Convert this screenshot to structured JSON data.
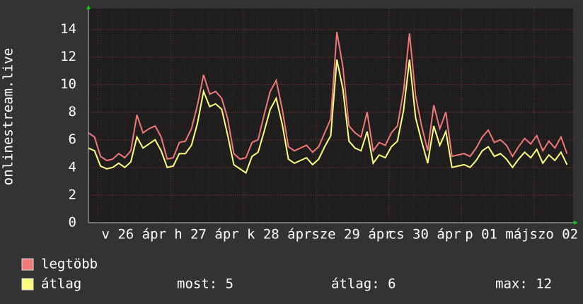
{
  "chart_data": {
    "type": "line",
    "ylabel": "onlinestream.live",
    "x": [
      0,
      2,
      4,
      6,
      8,
      10,
      12,
      14,
      16,
      18,
      20,
      22,
      24,
      26,
      28,
      30,
      32,
      34,
      36,
      38,
      40,
      42,
      44,
      46,
      48,
      50,
      52,
      54,
      56,
      58,
      60,
      62,
      64,
      66,
      68,
      70,
      72,
      74,
      76,
      78,
      80,
      82,
      84,
      86,
      88,
      90,
      92,
      94,
      96,
      98,
      100,
      102,
      104,
      106,
      108,
      110,
      112,
      114,
      116,
      118,
      120,
      122,
      124,
      126,
      128,
      130,
      132,
      134,
      136,
      138,
      140,
      142,
      144,
      146,
      148,
      150,
      152,
      154,
      156,
      158
    ],
    "series": [
      {
        "name": "legtöbb",
        "color": "#f07878",
        "values": [
          6.5,
          6.2,
          4.8,
          4.5,
          4.6,
          5.0,
          4.7,
          5.2,
          7.8,
          6.5,
          6.8,
          7.0,
          6.2,
          4.6,
          4.7,
          5.8,
          5.9,
          6.8,
          8.5,
          10.7,
          9.3,
          9.5,
          9.0,
          7.5,
          5.0,
          4.6,
          4.7,
          5.8,
          6.0,
          7.8,
          9.5,
          10.3,
          8.2,
          5.5,
          5.2,
          5.4,
          5.6,
          5.1,
          5.5,
          6.5,
          7.5,
          13.8,
          11.3,
          7.0,
          6.5,
          6.2,
          8.0,
          5.2,
          5.8,
          5.6,
          6.5,
          7.0,
          9.5,
          13.7,
          9.2,
          7.0,
          5.2,
          8.5,
          6.8,
          8.0,
          4.8,
          4.9,
          5.0,
          4.8,
          5.4,
          6.2,
          6.7,
          5.8,
          6.0,
          5.6,
          4.8,
          5.5,
          6.1,
          5.7,
          6.3,
          5.2,
          5.9,
          5.4,
          6.2,
          5.0
        ]
      },
      {
        "name": "átlag",
        "color": "#ffff80",
        "values": [
          5.4,
          5.2,
          4.1,
          3.9,
          4.0,
          4.3,
          4.0,
          4.4,
          6.2,
          5.4,
          5.7,
          6.0,
          5.2,
          4.0,
          4.1,
          5.0,
          5.0,
          5.6,
          7.2,
          9.5,
          8.4,
          8.6,
          8.2,
          6.3,
          4.2,
          3.9,
          3.6,
          4.8,
          5.1,
          6.6,
          8.2,
          9.0,
          7.1,
          4.6,
          4.3,
          4.5,
          4.7,
          4.2,
          4.6,
          5.5,
          6.3,
          11.8,
          9.7,
          5.9,
          5.4,
          5.2,
          6.6,
          4.3,
          4.9,
          4.7,
          5.5,
          5.9,
          8.1,
          11.8,
          7.6,
          5.9,
          4.3,
          7.0,
          5.6,
          6.6,
          4.0,
          4.1,
          4.2,
          4.0,
          4.5,
          5.2,
          5.5,
          4.8,
          5.0,
          4.6,
          4.0,
          4.6,
          5.1,
          4.7,
          5.3,
          4.3,
          4.9,
          4.5,
          5.1,
          4.2
        ]
      }
    ],
    "xlim": [
      0,
      160
    ],
    "xticks": [
      {
        "value": 15,
        "label": "v 26 ápr"
      },
      {
        "value": 39,
        "label": "h 27 ápr"
      },
      {
        "value": 63,
        "label": "k 28 ápr"
      },
      {
        "value": 87,
        "label": "sze 29 ápr"
      },
      {
        "value": 111,
        "label": "cs 30 ápr"
      },
      {
        "value": 135,
        "label": "p 01 máj"
      },
      {
        "value": 159,
        "label": "szo 02 máj"
      }
    ],
    "ylim": [
      0,
      15.5
    ],
    "yticks": [
      0,
      2,
      4,
      6,
      8,
      10,
      12,
      14
    ],
    "grid": true,
    "stats": [
      "most: 5",
      "átlag: 6",
      "max: 12"
    ]
  }
}
